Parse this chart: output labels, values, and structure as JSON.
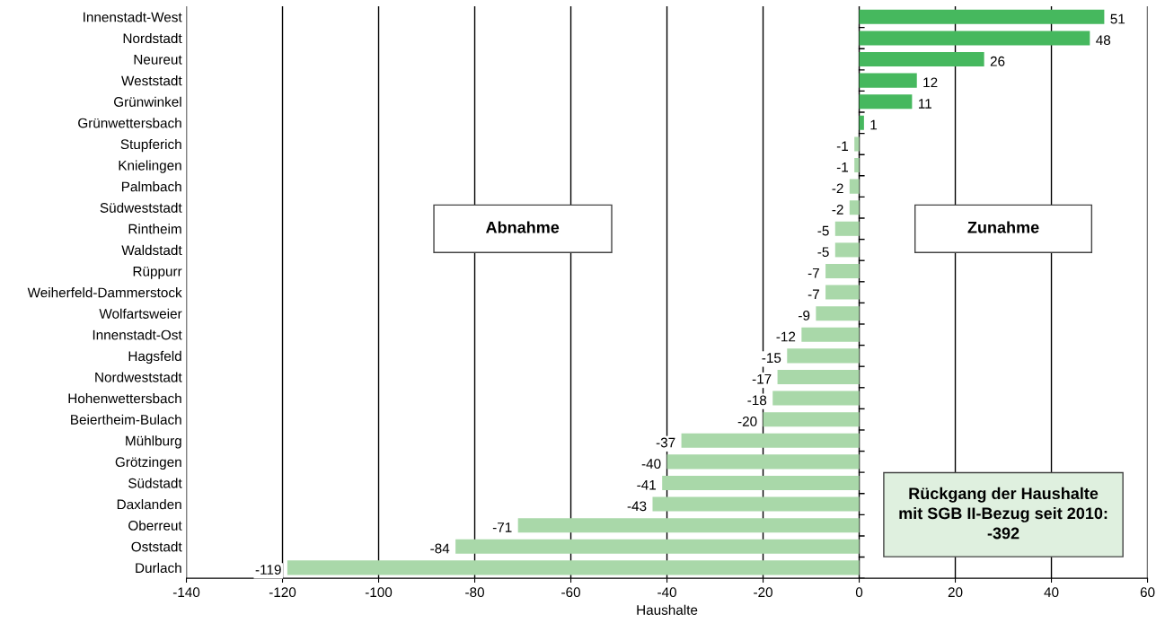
{
  "chart_data": {
    "type": "bar",
    "orientation": "horizontal",
    "xlabel": "Haushalte",
    "categories": [
      "Innenstadt-West",
      "Nordstadt",
      "Neureut",
      "Weststadt",
      "Grünwinkel",
      "Grünwettersbach",
      "Stupferich",
      "Knielingen",
      "Palmbach",
      "Südweststadt",
      "Rintheim",
      "Waldstadt",
      "Rüppurr",
      "Weiherfeld-Dammerstock",
      "Wolfartsweier",
      "Innenstadt-Ost",
      "Hagsfeld",
      "Nordweststadt",
      "Hohenwettersbach",
      "Beiertheim-Bulach",
      "Mühlburg",
      "Grötzingen",
      "Südstadt",
      "Daxlanden",
      "Oberreut",
      "Oststadt",
      "Durlach"
    ],
    "values": [
      51,
      48,
      26,
      12,
      11,
      1,
      -1,
      -1,
      -2,
      -2,
      -5,
      -5,
      -7,
      -7,
      -9,
      -12,
      -15,
      -17,
      -18,
      -20,
      -37,
      -40,
      -41,
      -43,
      -71,
      -84,
      -119
    ],
    "colors": [
      "#46b85e",
      "#46b85e",
      "#46b85e",
      "#46b85e",
      "#46b85e",
      "#46b85e",
      "#a9d8a9",
      "#a9d8a9",
      "#a9d8a9",
      "#a9d8a9",
      "#a9d8a9",
      "#a9d8a9",
      "#a9d8a9",
      "#a9d8a9",
      "#a9d8a9",
      "#a9d8a9",
      "#a9d8a9",
      "#a9d8a9",
      "#a9d8a9",
      "#a9d8a9",
      "#a9d8a9",
      "#a9d8a9",
      "#a9d8a9",
      "#a9d8a9",
      "#a9d8a9",
      "#a9d8a9",
      "#a9d8a9"
    ],
    "xlim": [
      -140,
      60
    ],
    "xticks": [
      -140,
      -120,
      -100,
      -80,
      -60,
      -40,
      -20,
      0,
      20,
      40,
      60
    ],
    "grid": "x",
    "data_labels": true,
    "annotations": [
      "Abnahme",
      "Zunahme",
      "Rückgang der Haushalte\nmit SGB II-Bezug seit 2010:\n-392"
    ]
  }
}
